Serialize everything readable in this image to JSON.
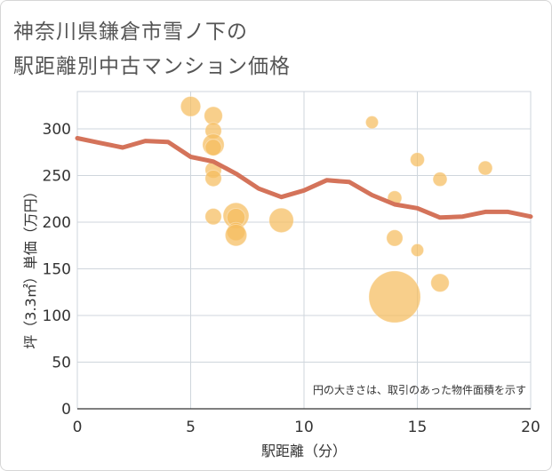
{
  "title_line1": "神奈川県鎌倉市雪ノ下の",
  "title_line2": "駅距離別中古マンション価格",
  "chart_data": {
    "type": "scatter",
    "xlabel": "駅距離（分）",
    "ylabel": "坪（3.3㎡）単価（万円）",
    "note": "円の大きさは、取引のあった物件面積を示す",
    "xlim": [
      0,
      20
    ],
    "ylim": [
      0,
      340
    ],
    "xticks": [
      0,
      5,
      10,
      15,
      20
    ],
    "yticks": [
      0,
      50,
      100,
      150,
      200,
      250,
      300
    ],
    "grid": true,
    "bubble_color": "#f5bd5e",
    "line_color": "#d4735a",
    "bubbles": [
      {
        "x": 5,
        "y": 324,
        "size": 3
      },
      {
        "x": 6,
        "y": 314,
        "size": 2.5
      },
      {
        "x": 6,
        "y": 298,
        "size": 2
      },
      {
        "x": 6,
        "y": 283,
        "size": 3.5
      },
      {
        "x": 6,
        "y": 280,
        "size": 2
      },
      {
        "x": 6,
        "y": 256,
        "size": 2
      },
      {
        "x": 6,
        "y": 247,
        "size": 2
      },
      {
        "x": 6,
        "y": 206,
        "size": 2
      },
      {
        "x": 7,
        "y": 207,
        "size": 5
      },
      {
        "x": 7,
        "y": 205,
        "size": 2.5
      },
      {
        "x": 7,
        "y": 190,
        "size": 2.5
      },
      {
        "x": 7,
        "y": 186,
        "size": 3.5
      },
      {
        "x": 9,
        "y": 202,
        "size": 4.5
      },
      {
        "x": 13,
        "y": 307,
        "size": 1.2
      },
      {
        "x": 14,
        "y": 226,
        "size": 1.5
      },
      {
        "x": 14,
        "y": 183,
        "size": 2
      },
      {
        "x": 14,
        "y": 120,
        "size": 20
      },
      {
        "x": 15,
        "y": 267,
        "size": 1.5
      },
      {
        "x": 15,
        "y": 170,
        "size": 1.2
      },
      {
        "x": 16,
        "y": 246,
        "size": 1.5
      },
      {
        "x": 16,
        "y": 135,
        "size": 2.5
      },
      {
        "x": 18,
        "y": 258,
        "size": 1.5
      }
    ],
    "trend": {
      "x": [
        0,
        1,
        2,
        3,
        4,
        5,
        6,
        7,
        8,
        9,
        10,
        11,
        12,
        13,
        14,
        15,
        16,
        17,
        18,
        19,
        20
      ],
      "y": [
        290,
        285,
        280,
        287,
        286,
        270,
        265,
        252,
        236,
        227,
        234,
        245,
        243,
        229,
        219,
        215,
        205,
        206,
        211,
        211,
        206
      ]
    }
  }
}
